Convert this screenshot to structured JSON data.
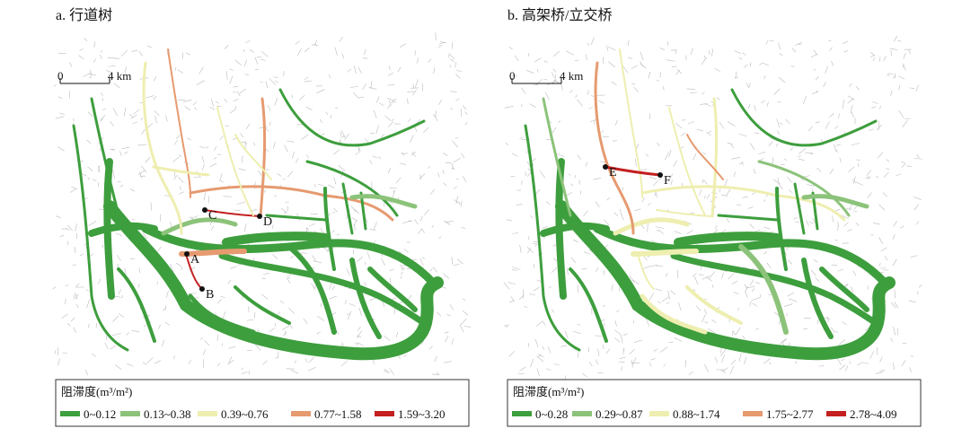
{
  "panels": [
    {
      "title": "a. 行道树",
      "scale": {
        "start": "0",
        "end": "4 km"
      },
      "points": [
        "A",
        "B",
        "C",
        "D"
      ],
      "legend": {
        "title": "阻滞度(m³/m²)",
        "items": [
          {
            "label": "0~0.12",
            "color": "#3d9e3d"
          },
          {
            "label": "0.13~0.38",
            "color": "#8cc37a"
          },
          {
            "label": "0.39~0.76",
            "color": "#eeeeb0"
          },
          {
            "label": "0.77~1.58",
            "color": "#e69a70"
          },
          {
            "label": "1.59~3.20",
            "color": "#c42020"
          }
        ]
      }
    },
    {
      "title": "b. 高架桥/立交桥",
      "scale": {
        "start": "0",
        "end": "4 km"
      },
      "points": [
        "E",
        "F"
      ],
      "legend": {
        "title": "阻滞度(m³/m²)",
        "items": [
          {
            "label": "0~0.28",
            "color": "#3d9e3d"
          },
          {
            "label": "0.29~0.87",
            "color": "#8cc37a"
          },
          {
            "label": "0.88~1.74",
            "color": "#eeeeb0"
          },
          {
            "label": "1.75~2.77",
            "color": "#e69a70"
          },
          {
            "label": "2.78~4.09",
            "color": "#c42020"
          }
        ]
      }
    }
  ]
}
